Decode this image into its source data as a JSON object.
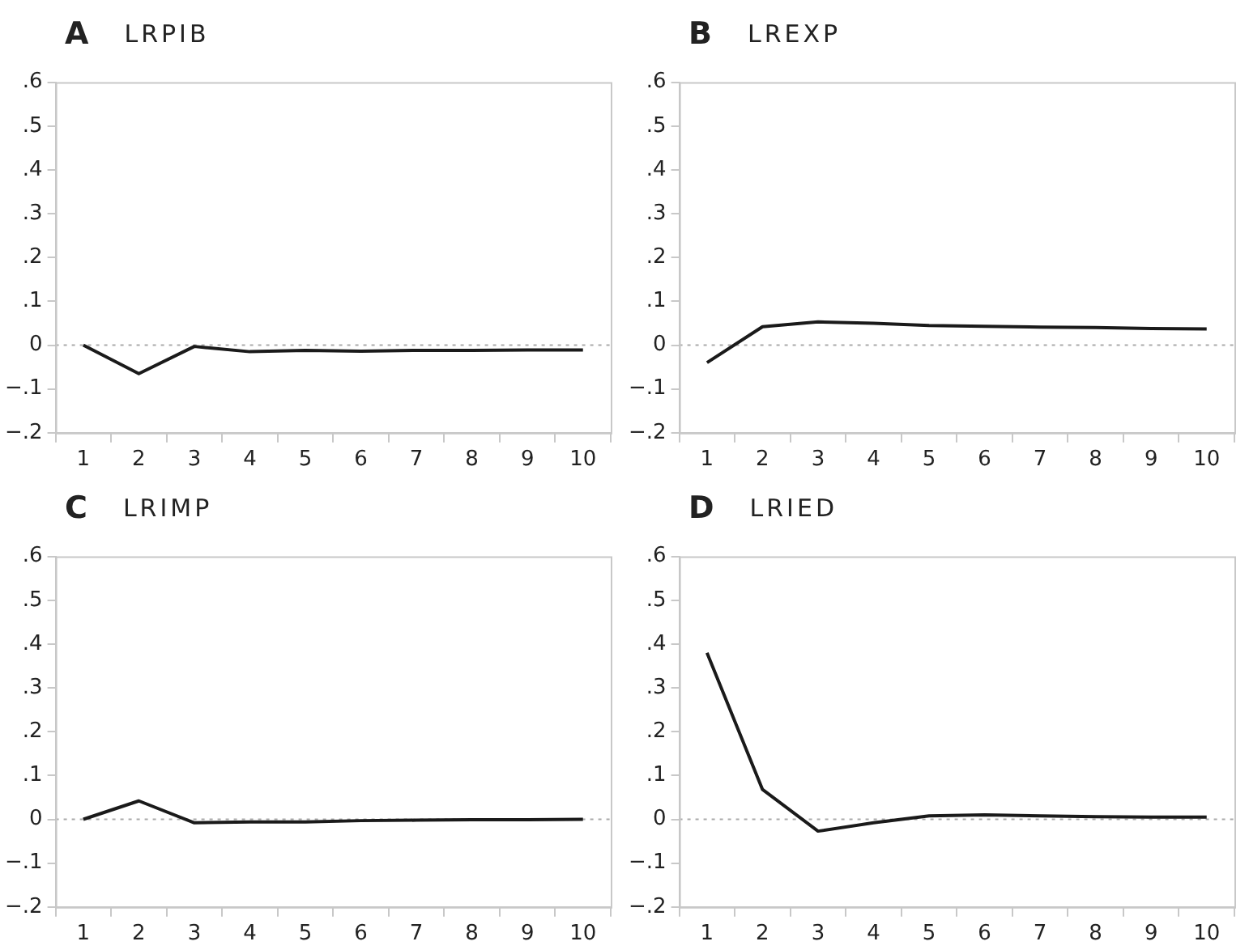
{
  "chart_data": [
    {
      "type": "line",
      "title": "A",
      "subtitle": "LRPIB",
      "categories": [
        "1",
        "2",
        "3",
        "4",
        "5",
        "6",
        "7",
        "8",
        "9",
        "10"
      ],
      "series": [
        {
          "color": "#1a1a1a",
          "values": [
            0,
            -0.065,
            -0.003,
            -0.015,
            -0.012,
            -0.014,
            -0.012,
            -0.012,
            -0.011,
            -0.011
          ]
        }
      ],
      "ylim": [
        -0.2,
        0.6
      ],
      "yticks": [
        {
          "value": -0.2,
          "label": "−.2"
        },
        {
          "value": -0.1,
          "label": "−.1"
        },
        {
          "value": 0,
          "label": "0"
        },
        {
          "value": 0.1,
          "label": ".1"
        },
        {
          "value": 0.2,
          "label": ".2"
        },
        {
          "value": 0.3,
          "label": ".3"
        },
        {
          "value": 0.4,
          "label": ".4"
        },
        {
          "value": 0.5,
          "label": ".5"
        },
        {
          "value": 0.6,
          "label": ".6"
        }
      ],
      "ref_lines": [
        {
          "axis": "y",
          "value": 0,
          "color": "#aaaaaa",
          "line_style": "dotted"
        }
      ],
      "grid": false,
      "legend": false,
      "marker": "none",
      "line_style": "solid"
    },
    {
      "type": "line",
      "title": "B",
      "subtitle": "LREXP",
      "categories": [
        "1",
        "2",
        "3",
        "4",
        "5",
        "6",
        "7",
        "8",
        "9",
        "10"
      ],
      "series": [
        {
          "color": "#1a1a1a",
          "values": [
            -0.04,
            0.042,
            0.053,
            0.05,
            0.045,
            0.043,
            0.041,
            0.04,
            0.038,
            0.037
          ]
        }
      ],
      "ylim": [
        -0.2,
        0.6
      ],
      "yticks": [
        {
          "value": -0.2,
          "label": "−.2"
        },
        {
          "value": -0.1,
          "label": "−.1"
        },
        {
          "value": 0,
          "label": "0"
        },
        {
          "value": 0.1,
          "label": ".1"
        },
        {
          "value": 0.2,
          "label": ".2"
        },
        {
          "value": 0.3,
          "label": ".3"
        },
        {
          "value": 0.4,
          "label": ".4"
        },
        {
          "value": 0.5,
          "label": ".5"
        },
        {
          "value": 0.6,
          "label": ".6"
        }
      ],
      "ref_lines": [
        {
          "axis": "y",
          "value": 0,
          "color": "#aaaaaa",
          "line_style": "dotted"
        }
      ],
      "grid": false,
      "legend": false,
      "marker": "none",
      "line_style": "solid"
    },
    {
      "type": "line",
      "title": "C",
      "subtitle": "LRIMP",
      "categories": [
        "1",
        "2",
        "3",
        "4",
        "5",
        "6",
        "7",
        "8",
        "9",
        "10"
      ],
      "series": [
        {
          "color": "#1a1a1a",
          "values": [
            0,
            0.042,
            -0.008,
            -0.006,
            -0.006,
            -0.003,
            -0.002,
            -0.001,
            -0.001,
            0
          ]
        }
      ],
      "ylim": [
        -0.2,
        0.6
      ],
      "yticks": [
        {
          "value": -0.2,
          "label": "−.2"
        },
        {
          "value": -0.1,
          "label": "−.1"
        },
        {
          "value": 0,
          "label": "0"
        },
        {
          "value": 0.1,
          "label": ".1"
        },
        {
          "value": 0.2,
          "label": ".2"
        },
        {
          "value": 0.3,
          "label": ".3"
        },
        {
          "value": 0.4,
          "label": ".4"
        },
        {
          "value": 0.5,
          "label": ".5"
        },
        {
          "value": 0.6,
          "label": ".6"
        }
      ],
      "ref_lines": [
        {
          "axis": "y",
          "value": 0,
          "color": "#aaaaaa",
          "line_style": "dotted"
        }
      ],
      "grid": false,
      "legend": false,
      "marker": "none",
      "line_style": "solid"
    },
    {
      "type": "line",
      "title": "D",
      "subtitle": "LRIED",
      "categories": [
        "1",
        "2",
        "3",
        "4",
        "5",
        "6",
        "7",
        "8",
        "9",
        "10"
      ],
      "series": [
        {
          "color": "#1a1a1a",
          "values": [
            0.38,
            0.068,
            -0.027,
            -0.008,
            0.008,
            0.01,
            0.008,
            0.006,
            0.005,
            0.005
          ]
        }
      ],
      "ylim": [
        -0.2,
        0.6
      ],
      "yticks": [
        {
          "value": -0.2,
          "label": "−.2"
        },
        {
          "value": -0.1,
          "label": "−.1"
        },
        {
          "value": 0,
          "label": "0"
        },
        {
          "value": 0.1,
          "label": ".1"
        },
        {
          "value": 0.2,
          "label": ".2"
        },
        {
          "value": 0.3,
          "label": ".3"
        },
        {
          "value": 0.4,
          "label": ".4"
        },
        {
          "value": 0.5,
          "label": ".5"
        },
        {
          "value": 0.6,
          "label": ".6"
        }
      ],
      "ref_lines": [
        {
          "axis": "y",
          "value": 0,
          "color": "#aaaaaa",
          "line_style": "dotted"
        }
      ],
      "grid": false,
      "legend": false,
      "marker": "none",
      "line_style": "solid"
    }
  ]
}
